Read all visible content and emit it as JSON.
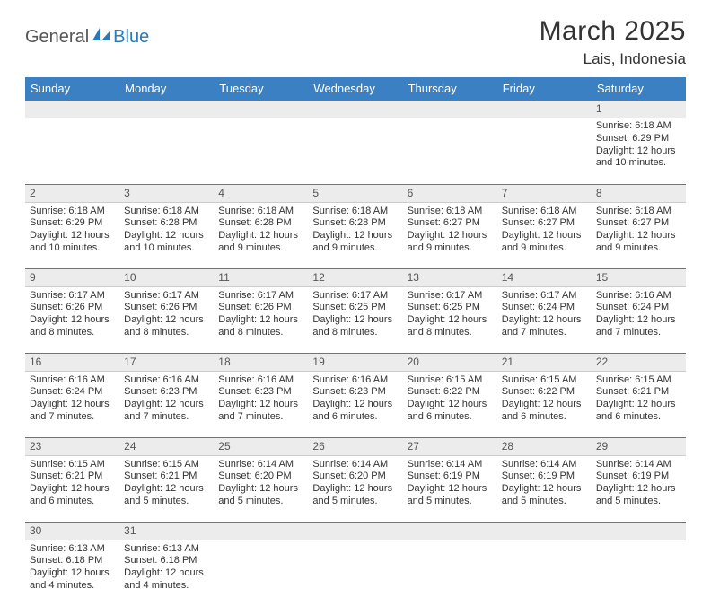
{
  "logo": {
    "text1": "General",
    "text2": "Blue"
  },
  "title": "March 2025",
  "location": "Lais, Indonesia",
  "colors": {
    "header_bg": "#3a80c3",
    "header_fg": "#ffffff",
    "daynum_bg": "#ececec",
    "border_week": "#3a80c3",
    "border_light": "#cccccc",
    "logo_accent": "#2a7ab9",
    "text": "#333333"
  },
  "day_headers": [
    "Sunday",
    "Monday",
    "Tuesday",
    "Wednesday",
    "Thursday",
    "Friday",
    "Saturday"
  ],
  "weeks": [
    {
      "nums": [
        "",
        "",
        "",
        "",
        "",
        "",
        "1"
      ],
      "cells": [
        null,
        null,
        null,
        null,
        null,
        null,
        {
          "sunrise": "Sunrise: 6:18 AM",
          "sunset": "Sunset: 6:29 PM",
          "day1": "Daylight: 12 hours",
          "day2": "and 10 minutes."
        }
      ]
    },
    {
      "nums": [
        "2",
        "3",
        "4",
        "5",
        "6",
        "7",
        "8"
      ],
      "cells": [
        {
          "sunrise": "Sunrise: 6:18 AM",
          "sunset": "Sunset: 6:29 PM",
          "day1": "Daylight: 12 hours",
          "day2": "and 10 minutes."
        },
        {
          "sunrise": "Sunrise: 6:18 AM",
          "sunset": "Sunset: 6:28 PM",
          "day1": "Daylight: 12 hours",
          "day2": "and 10 minutes."
        },
        {
          "sunrise": "Sunrise: 6:18 AM",
          "sunset": "Sunset: 6:28 PM",
          "day1": "Daylight: 12 hours",
          "day2": "and 9 minutes."
        },
        {
          "sunrise": "Sunrise: 6:18 AM",
          "sunset": "Sunset: 6:28 PM",
          "day1": "Daylight: 12 hours",
          "day2": "and 9 minutes."
        },
        {
          "sunrise": "Sunrise: 6:18 AM",
          "sunset": "Sunset: 6:27 PM",
          "day1": "Daylight: 12 hours",
          "day2": "and 9 minutes."
        },
        {
          "sunrise": "Sunrise: 6:18 AM",
          "sunset": "Sunset: 6:27 PM",
          "day1": "Daylight: 12 hours",
          "day2": "and 9 minutes."
        },
        {
          "sunrise": "Sunrise: 6:18 AM",
          "sunset": "Sunset: 6:27 PM",
          "day1": "Daylight: 12 hours",
          "day2": "and 9 minutes."
        }
      ]
    },
    {
      "nums": [
        "9",
        "10",
        "11",
        "12",
        "13",
        "14",
        "15"
      ],
      "cells": [
        {
          "sunrise": "Sunrise: 6:17 AM",
          "sunset": "Sunset: 6:26 PM",
          "day1": "Daylight: 12 hours",
          "day2": "and 8 minutes."
        },
        {
          "sunrise": "Sunrise: 6:17 AM",
          "sunset": "Sunset: 6:26 PM",
          "day1": "Daylight: 12 hours",
          "day2": "and 8 minutes."
        },
        {
          "sunrise": "Sunrise: 6:17 AM",
          "sunset": "Sunset: 6:26 PM",
          "day1": "Daylight: 12 hours",
          "day2": "and 8 minutes."
        },
        {
          "sunrise": "Sunrise: 6:17 AM",
          "sunset": "Sunset: 6:25 PM",
          "day1": "Daylight: 12 hours",
          "day2": "and 8 minutes."
        },
        {
          "sunrise": "Sunrise: 6:17 AM",
          "sunset": "Sunset: 6:25 PM",
          "day1": "Daylight: 12 hours",
          "day2": "and 8 minutes."
        },
        {
          "sunrise": "Sunrise: 6:17 AM",
          "sunset": "Sunset: 6:24 PM",
          "day1": "Daylight: 12 hours",
          "day2": "and 7 minutes."
        },
        {
          "sunrise": "Sunrise: 6:16 AM",
          "sunset": "Sunset: 6:24 PM",
          "day1": "Daylight: 12 hours",
          "day2": "and 7 minutes."
        }
      ]
    },
    {
      "nums": [
        "16",
        "17",
        "18",
        "19",
        "20",
        "21",
        "22"
      ],
      "cells": [
        {
          "sunrise": "Sunrise: 6:16 AM",
          "sunset": "Sunset: 6:24 PM",
          "day1": "Daylight: 12 hours",
          "day2": "and 7 minutes."
        },
        {
          "sunrise": "Sunrise: 6:16 AM",
          "sunset": "Sunset: 6:23 PM",
          "day1": "Daylight: 12 hours",
          "day2": "and 7 minutes."
        },
        {
          "sunrise": "Sunrise: 6:16 AM",
          "sunset": "Sunset: 6:23 PM",
          "day1": "Daylight: 12 hours",
          "day2": "and 7 minutes."
        },
        {
          "sunrise": "Sunrise: 6:16 AM",
          "sunset": "Sunset: 6:23 PM",
          "day1": "Daylight: 12 hours",
          "day2": "and 6 minutes."
        },
        {
          "sunrise": "Sunrise: 6:15 AM",
          "sunset": "Sunset: 6:22 PM",
          "day1": "Daylight: 12 hours",
          "day2": "and 6 minutes."
        },
        {
          "sunrise": "Sunrise: 6:15 AM",
          "sunset": "Sunset: 6:22 PM",
          "day1": "Daylight: 12 hours",
          "day2": "and 6 minutes."
        },
        {
          "sunrise": "Sunrise: 6:15 AM",
          "sunset": "Sunset: 6:21 PM",
          "day1": "Daylight: 12 hours",
          "day2": "and 6 minutes."
        }
      ]
    },
    {
      "nums": [
        "23",
        "24",
        "25",
        "26",
        "27",
        "28",
        "29"
      ],
      "cells": [
        {
          "sunrise": "Sunrise: 6:15 AM",
          "sunset": "Sunset: 6:21 PM",
          "day1": "Daylight: 12 hours",
          "day2": "and 6 minutes."
        },
        {
          "sunrise": "Sunrise: 6:15 AM",
          "sunset": "Sunset: 6:21 PM",
          "day1": "Daylight: 12 hours",
          "day2": "and 5 minutes."
        },
        {
          "sunrise": "Sunrise: 6:14 AM",
          "sunset": "Sunset: 6:20 PM",
          "day1": "Daylight: 12 hours",
          "day2": "and 5 minutes."
        },
        {
          "sunrise": "Sunrise: 6:14 AM",
          "sunset": "Sunset: 6:20 PM",
          "day1": "Daylight: 12 hours",
          "day2": "and 5 minutes."
        },
        {
          "sunrise": "Sunrise: 6:14 AM",
          "sunset": "Sunset: 6:19 PM",
          "day1": "Daylight: 12 hours",
          "day2": "and 5 minutes."
        },
        {
          "sunrise": "Sunrise: 6:14 AM",
          "sunset": "Sunset: 6:19 PM",
          "day1": "Daylight: 12 hours",
          "day2": "and 5 minutes."
        },
        {
          "sunrise": "Sunrise: 6:14 AM",
          "sunset": "Sunset: 6:19 PM",
          "day1": "Daylight: 12 hours",
          "day2": "and 5 minutes."
        }
      ]
    },
    {
      "nums": [
        "30",
        "31",
        "",
        "",
        "",
        "",
        ""
      ],
      "cells": [
        {
          "sunrise": "Sunrise: 6:13 AM",
          "sunset": "Sunset: 6:18 PM",
          "day1": "Daylight: 12 hours",
          "day2": "and 4 minutes."
        },
        {
          "sunrise": "Sunrise: 6:13 AM",
          "sunset": "Sunset: 6:18 PM",
          "day1": "Daylight: 12 hours",
          "day2": "and 4 minutes."
        },
        null,
        null,
        null,
        null,
        null
      ]
    }
  ]
}
